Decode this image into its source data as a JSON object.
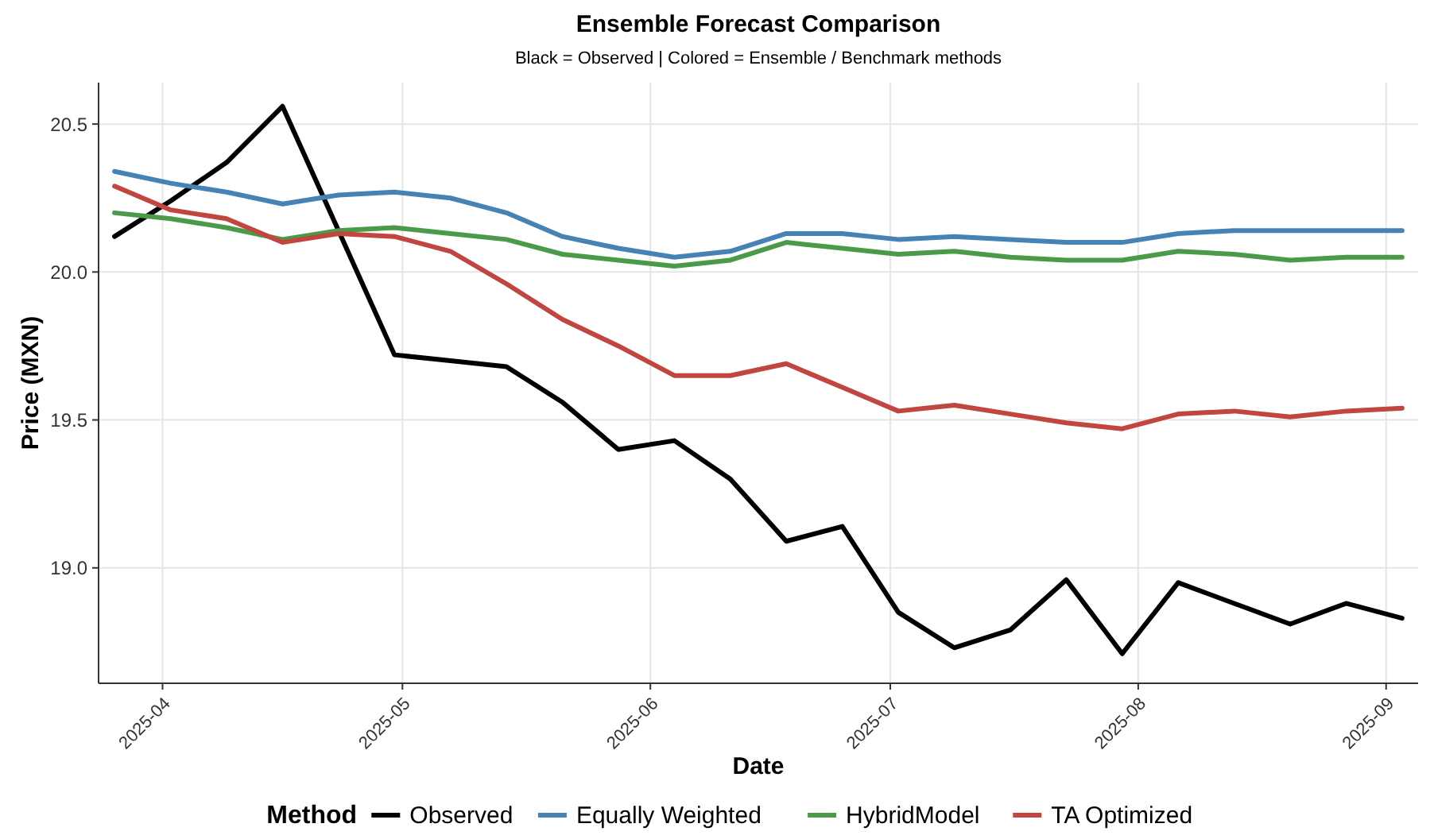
{
  "chart_data": {
    "type": "line",
    "title": "Ensemble Forecast Comparison",
    "subtitle": "Black = Observed | Colored = Ensemble / Benchmark methods",
    "xlabel": "Date",
    "ylabel": "Price (MXN)",
    "legend_title": "Method",
    "legend": "bottom",
    "grid": true,
    "line_style": "solid",
    "marker": "none",
    "x": [
      "2025-03-26",
      "2025-04-02",
      "2025-04-09",
      "2025-04-16",
      "2025-04-23",
      "2025-04-30",
      "2025-05-07",
      "2025-05-14",
      "2025-05-21",
      "2025-05-28",
      "2025-06-04",
      "2025-06-11",
      "2025-06-18",
      "2025-06-25",
      "2025-07-02",
      "2025-07-09",
      "2025-07-16",
      "2025-07-23",
      "2025-07-30",
      "2025-08-06",
      "2025-08-13",
      "2025-08-20",
      "2025-08-27",
      "2025-09-03"
    ],
    "xlim": [
      "2025-03-24",
      "2025-09-05"
    ],
    "xticks": [
      {
        "value": "2025-04-01",
        "label": "2025-04"
      },
      {
        "value": "2025-05-01",
        "label": "2025-05"
      },
      {
        "value": "2025-06-01",
        "label": "2025-06"
      },
      {
        "value": "2025-07-01",
        "label": "2025-07"
      },
      {
        "value": "2025-08-01",
        "label": "2025-08"
      },
      {
        "value": "2025-09-01",
        "label": "2025-09"
      }
    ],
    "ylim": [
      18.61,
      20.64
    ],
    "yticks": [
      {
        "value": 19,
        "label": "19.0"
      },
      19.5,
      {
        "value": 20,
        "label": "20.0"
      },
      20.5
    ],
    "series": [
      {
        "name": "Observed",
        "color": "#000000",
        "values": [
          20.12,
          20.24,
          20.37,
          20.56,
          20.14,
          19.72,
          19.7,
          19.68,
          19.56,
          19.4,
          19.43,
          19.3,
          19.09,
          19.14,
          18.85,
          18.73,
          18.79,
          18.96,
          18.71,
          18.95,
          18.88,
          18.81,
          18.88,
          18.83
        ]
      },
      {
        "name": "Equally Weighted",
        "color": "#4682b4",
        "values": [
          20.34,
          20.3,
          20.27,
          20.23,
          20.26,
          20.27,
          20.25,
          20.2,
          20.12,
          20.08,
          20.05,
          20.07,
          20.13,
          20.13,
          20.11,
          20.12,
          20.11,
          20.1,
          20.1,
          20.13,
          20.14,
          20.14,
          20.14,
          20.14
        ]
      },
      {
        "name": "HybridModel",
        "color": "#4a9a4a",
        "values": [
          20.2,
          20.18,
          20.15,
          20.11,
          20.14,
          20.15,
          20.13,
          20.11,
          20.06,
          20.04,
          20.02,
          20.04,
          20.1,
          20.08,
          20.06,
          20.07,
          20.05,
          20.04,
          20.04,
          20.07,
          20.06,
          20.04,
          20.05,
          20.05
        ]
      },
      {
        "name": "TA Optimized",
        "color": "#c0463f",
        "values": [
          20.29,
          20.21,
          20.18,
          20.1,
          20.13,
          20.12,
          20.07,
          19.96,
          19.84,
          19.75,
          19.65,
          19.65,
          19.69,
          19.61,
          19.53,
          19.55,
          19.52,
          19.49,
          19.47,
          19.52,
          19.53,
          19.51,
          19.53,
          19.54
        ]
      }
    ]
  }
}
